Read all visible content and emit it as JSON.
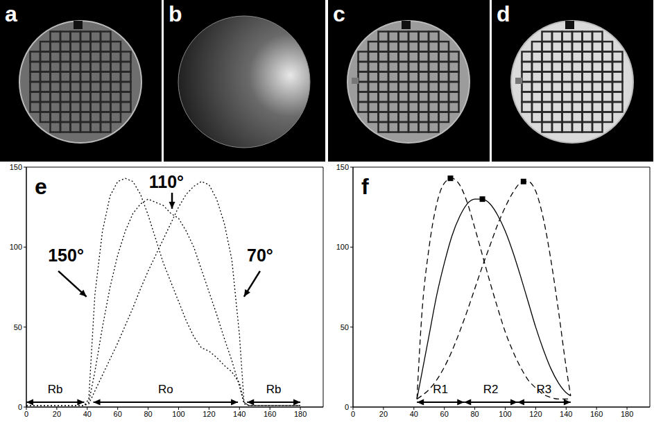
{
  "images": [
    {
      "label": "a"
    },
    {
      "label": "b"
    },
    {
      "label": "c"
    },
    {
      "label": "d"
    }
  ],
  "chart_data": [
    {
      "type": "line",
      "label": "e",
      "xlim": [
        0,
        195
      ],
      "xticks": [
        0,
        20,
        40,
        60,
        80,
        100,
        120,
        140,
        160,
        180
      ],
      "ylim": [
        0,
        150
      ],
      "yticks": [
        0,
        50,
        100,
        150
      ],
      "grid": false,
      "x": [
        0,
        10,
        20,
        30,
        38,
        41,
        45,
        50,
        55,
        60,
        65,
        70,
        75,
        80,
        85,
        90,
        95,
        100,
        105,
        110,
        115,
        120,
        125,
        130,
        135,
        140,
        143,
        146,
        150,
        160,
        170,
        180
      ],
      "series": [
        {
          "name": "150°",
          "color": "#000000",
          "line_style": "dotted",
          "values": [
            1,
            1,
            1,
            1,
            1,
            5,
            70,
            110,
            132,
            141,
            143,
            141,
            133,
            120,
            105,
            90,
            78,
            66,
            54,
            44,
            37,
            35,
            31,
            26,
            22,
            15,
            3,
            1,
            1,
            1,
            1,
            1
          ]
        },
        {
          "name": "110°",
          "color": "#000000",
          "line_style": "dotted",
          "values": [
            1,
            1,
            1,
            1,
            1,
            3,
            22,
            50,
            75,
            95,
            110,
            121,
            127,
            130,
            128,
            126,
            121,
            118,
            110,
            100,
            86,
            72,
            58,
            43,
            29,
            13,
            2,
            1,
            1,
            1,
            1,
            1
          ]
        },
        {
          "name": "70°",
          "color": "#000000",
          "line_style": "dotted",
          "values": [
            1,
            1,
            1,
            1,
            1,
            2,
            10,
            20,
            30,
            40,
            51,
            62,
            74,
            85,
            95,
            105,
            115,
            125,
            133,
            138,
            141,
            139,
            130,
            115,
            92,
            45,
            3,
            1,
            1,
            1,
            1,
            1
          ]
        }
      ],
      "regions": [
        {
          "label": "Rb",
          "from": 0,
          "to": 38
        },
        {
          "label": "Ro",
          "from": 44,
          "to": 139
        },
        {
          "label": "Rb",
          "from": 145,
          "to": 180
        }
      ]
    },
    {
      "type": "line",
      "label": "f",
      "xlim": [
        0,
        195
      ],
      "xticks": [
        0,
        20,
        40,
        60,
        80,
        100,
        120,
        140,
        160,
        180
      ],
      "ylim": [
        0,
        150
      ],
      "yticks": [
        0,
        50,
        100,
        150
      ],
      "grid": false,
      "x": [
        42,
        45,
        50,
        55,
        60,
        65,
        70,
        75,
        80,
        85,
        90,
        95,
        100,
        105,
        110,
        115,
        120,
        125,
        130,
        135,
        140,
        143
      ],
      "series": [
        {
          "color": "#000000",
          "line_style": "dashed",
          "values": [
            5,
            55,
            100,
            127,
            140,
            143,
            139,
            128,
            112,
            95,
            78,
            62,
            47,
            35,
            25,
            17,
            12,
            8,
            6,
            5,
            5,
            5
          ]
        },
        {
          "color": "#000000",
          "line_style": "solid",
          "values": [
            5,
            20,
            45,
            70,
            90,
            107,
            119,
            127,
            130,
            130,
            127,
            120,
            110,
            97,
            82,
            66,
            50,
            36,
            24,
            15,
            9,
            7
          ]
        },
        {
          "color": "#000000",
          "line_style": "dashed",
          "values": [
            5,
            7,
            11,
            17,
            25,
            35,
            47,
            60,
            74,
            88,
            101,
            114,
            125,
            134,
            140,
            141,
            135,
            118,
            92,
            60,
            25,
            7
          ]
        },
        {
          "type": "scatter",
          "marker": "square",
          "color": "#000000",
          "x": [
            64,
            85,
            112
          ],
          "values": [
            143,
            130,
            141
          ]
        }
      ],
      "regions": [
        {
          "label": "R1",
          "from": 42,
          "to": 73
        },
        {
          "label": "R2",
          "from": 73,
          "to": 108
        },
        {
          "label": "R3",
          "from": 108,
          "to": 143
        }
      ]
    }
  ]
}
